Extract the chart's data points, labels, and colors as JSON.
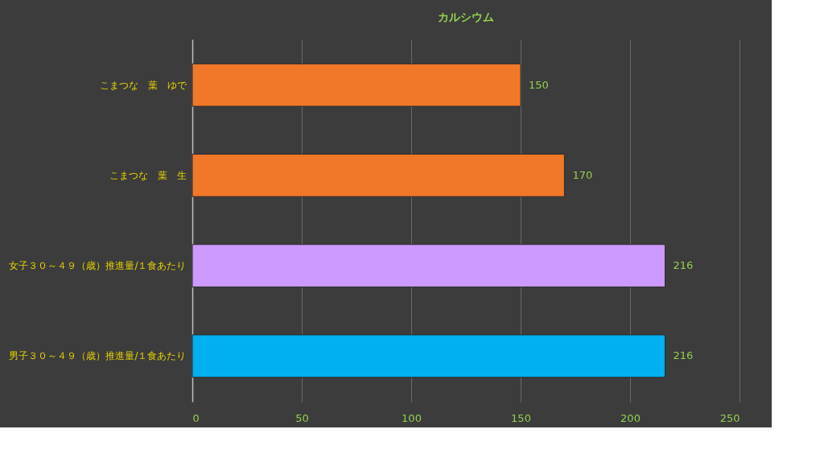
{
  "chart_data": {
    "type": "bar",
    "orientation": "horizontal",
    "title": "カルシウム",
    "categories": [
      "こまつな　葉　ゆで",
      "こまつな　葉　生",
      "女子３０～４９（歳）推進量/１食あたり",
      "男子３０～４９（歳）推進量/１食あたり"
    ],
    "values": [
      150,
      170,
      216,
      216
    ],
    "colors": [
      "#f07828",
      "#f07828",
      "#cc99ff",
      "#00b0f0"
    ],
    "xlim": [
      0,
      250
    ],
    "xticks": [
      0,
      50,
      100,
      150,
      200,
      250
    ],
    "grid": "x",
    "data_labels": true
  }
}
